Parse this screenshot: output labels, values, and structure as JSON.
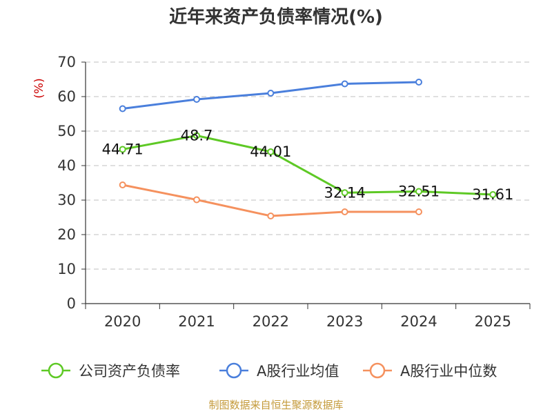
{
  "chart_data": {
    "type": "line",
    "title": "近年来资产负债率情况(%)",
    "ylabel": "(%)",
    "xlabel": "",
    "ylim": [
      0,
      70
    ],
    "yticks": [
      0,
      10,
      20,
      30,
      40,
      50,
      60,
      70
    ],
    "categories": [
      "2020",
      "2021",
      "2022",
      "2023",
      "2024",
      "2025"
    ],
    "series": [
      {
        "name": "公司资产负债率",
        "color": "#5ec925",
        "values": [
          44.71,
          48.7,
          44.01,
          32.14,
          32.51,
          31.61
        ],
        "labels": [
          "44.71",
          "48.7",
          "44.01",
          "32.14",
          "32.51",
          "31.61"
        ]
      },
      {
        "name": "A股行业均值",
        "color": "#4a7fdc",
        "values": [
          56.5,
          59.2,
          61.0,
          63.7,
          64.2,
          null
        ]
      },
      {
        "name": "A股行业中位数",
        "color": "#f5915e",
        "values": [
          34.4,
          30.1,
          25.4,
          26.6,
          26.6,
          null
        ]
      }
    ],
    "grid": true,
    "legend_position": "bottom"
  },
  "source": "制图数据来自恒生聚源数据库"
}
